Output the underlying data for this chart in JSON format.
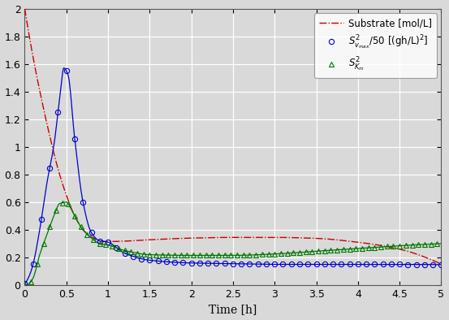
{
  "title": "",
  "xlabel": "Time [h]",
  "ylabel": "",
  "xlim": [
    0,
    5
  ],
  "ylim": [
    0,
    2
  ],
  "yticks": [
    0,
    0.2,
    0.4,
    0.6,
    0.8,
    1.0,
    1.2,
    1.4,
    1.6,
    1.8,
    2.0
  ],
  "xticks": [
    0,
    0.5,
    1,
    1.5,
    2,
    2.5,
    3,
    3.5,
    4,
    4.5,
    5
  ],
  "substrate_color": "#CC0000",
  "vmax_color": "#0000CC",
  "km_color": "#007700",
  "legend_labels": [
    "Substrate [mol/L]",
    "$S^2_{v_{max}}/50$ [(gh/L)$^2$]",
    "$S^2_{K_m}$"
  ],
  "bg_color": "#d8d8d8",
  "fig_bg_color": "#d8d8d8",
  "grid_color": "#ffffff",
  "figsize": [
    5.53,
    3.94
  ],
  "dpi": 100,
  "t_kp_vmax": [
    0,
    0.05,
    0.1,
    0.18,
    0.27,
    0.35,
    0.42,
    0.47,
    0.52,
    0.6,
    0.7,
    0.8,
    0.9,
    1.0,
    1.2,
    1.5,
    2.0,
    2.5,
    3.0,
    3.5,
    4.0,
    4.5,
    5.0
  ],
  "v_kp_vmax": [
    0.01,
    0.06,
    0.15,
    0.4,
    0.75,
    1.01,
    1.35,
    1.57,
    1.52,
    1.06,
    0.6,
    0.38,
    0.32,
    0.31,
    0.23,
    0.18,
    0.16,
    0.155,
    0.15,
    0.15,
    0.15,
    0.15,
    0.148
  ],
  "t_kp_km": [
    0,
    0.05,
    0.1,
    0.18,
    0.27,
    0.35,
    0.42,
    0.5,
    0.55,
    0.6,
    0.7,
    0.8,
    0.9,
    1.0,
    1.2,
    1.5,
    2.0,
    2.5,
    3.0,
    3.5,
    4.0,
    4.5,
    5.0
  ],
  "v_kp_km": [
    0.0,
    0.01,
    0.05,
    0.22,
    0.37,
    0.5,
    0.59,
    0.6,
    0.56,
    0.5,
    0.4,
    0.34,
    0.3,
    0.29,
    0.25,
    0.22,
    0.215,
    0.215,
    0.225,
    0.245,
    0.265,
    0.285,
    0.3
  ],
  "t_kp_sub": [
    0,
    0.1,
    0.2,
    0.3,
    0.4,
    0.5,
    0.6,
    0.7,
    0.8,
    0.9,
    1.0,
    1.2,
    1.5,
    2.0,
    2.5,
    3.0,
    3.5,
    4.0,
    4.5,
    5.0
  ],
  "v_kp_sub": [
    2.0,
    1.65,
    1.35,
    1.08,
    0.84,
    0.65,
    0.5,
    0.4,
    0.35,
    0.32,
    0.315,
    0.318,
    0.328,
    0.34,
    0.345,
    0.345,
    0.338,
    0.31,
    0.26,
    0.152
  ]
}
